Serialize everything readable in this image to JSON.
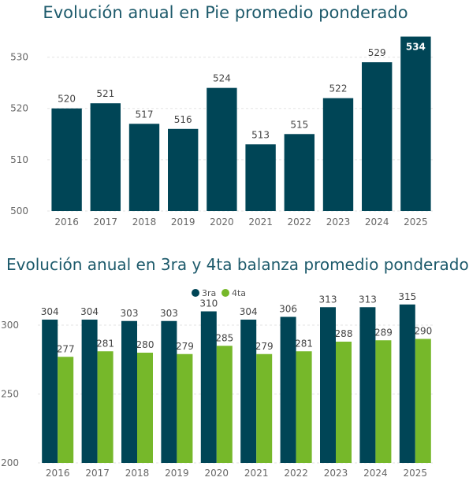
{
  "colors": {
    "dark": "#004556",
    "green": "#76b82a",
    "title": "#1d5a6b",
    "grid": "#e3e3e3"
  },
  "chart_data": [
    {
      "type": "bar",
      "title": "Evolución anual en Pie promedio ponderado",
      "categories": [
        "2016",
        "2017",
        "2018",
        "2019",
        "2020",
        "2021",
        "2022",
        "2023",
        "2024",
        "2025"
      ],
      "values": [
        520,
        521,
        517,
        516,
        524,
        513,
        515,
        522,
        529,
        534
      ],
      "ylim": [
        500,
        535
      ],
      "yticks": [
        500,
        510,
        520,
        530
      ],
      "grid": true,
      "legend": "none"
    },
    {
      "type": "bar",
      "title": "Evolución anual en 3ra y 4ta balanza promedio ponderado",
      "categories": [
        "2016",
        "2017",
        "2018",
        "2019",
        "2020",
        "2021",
        "2022",
        "2023",
        "2024",
        "2025"
      ],
      "series": [
        {
          "name": "3ra",
          "values": [
            304,
            304,
            303,
            303,
            310,
            304,
            306,
            313,
            313,
            315
          ]
        },
        {
          "name": "4ta",
          "values": [
            277,
            281,
            280,
            279,
            285,
            279,
            281,
            288,
            289,
            290
          ]
        }
      ],
      "ylim": [
        200,
        320
      ],
      "yticks": [
        200,
        250,
        300
      ],
      "grid": true,
      "legend": "top-center"
    }
  ]
}
